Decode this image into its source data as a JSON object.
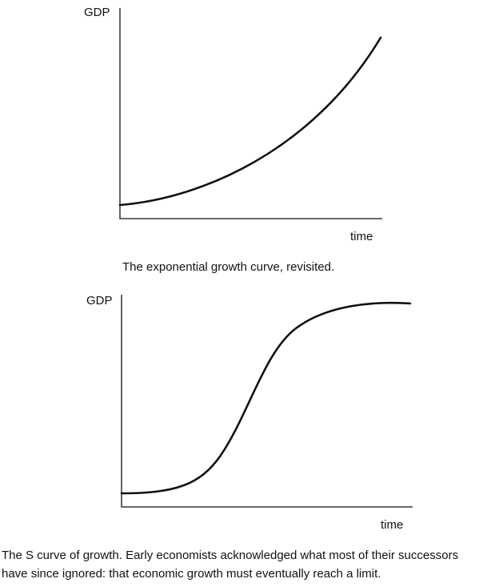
{
  "diagrams": [
    {
      "y_label": "GDP",
      "x_label": "time",
      "caption": "The exponential growth curve, revisited."
    },
    {
      "y_label": "GDP",
      "x_label": "time",
      "caption_lines": [
        "The S curve of growth. Early economists acknowledged what most of their successors",
        "have since ignored: that economic growth must eventually reach a limit."
      ]
    }
  ]
}
